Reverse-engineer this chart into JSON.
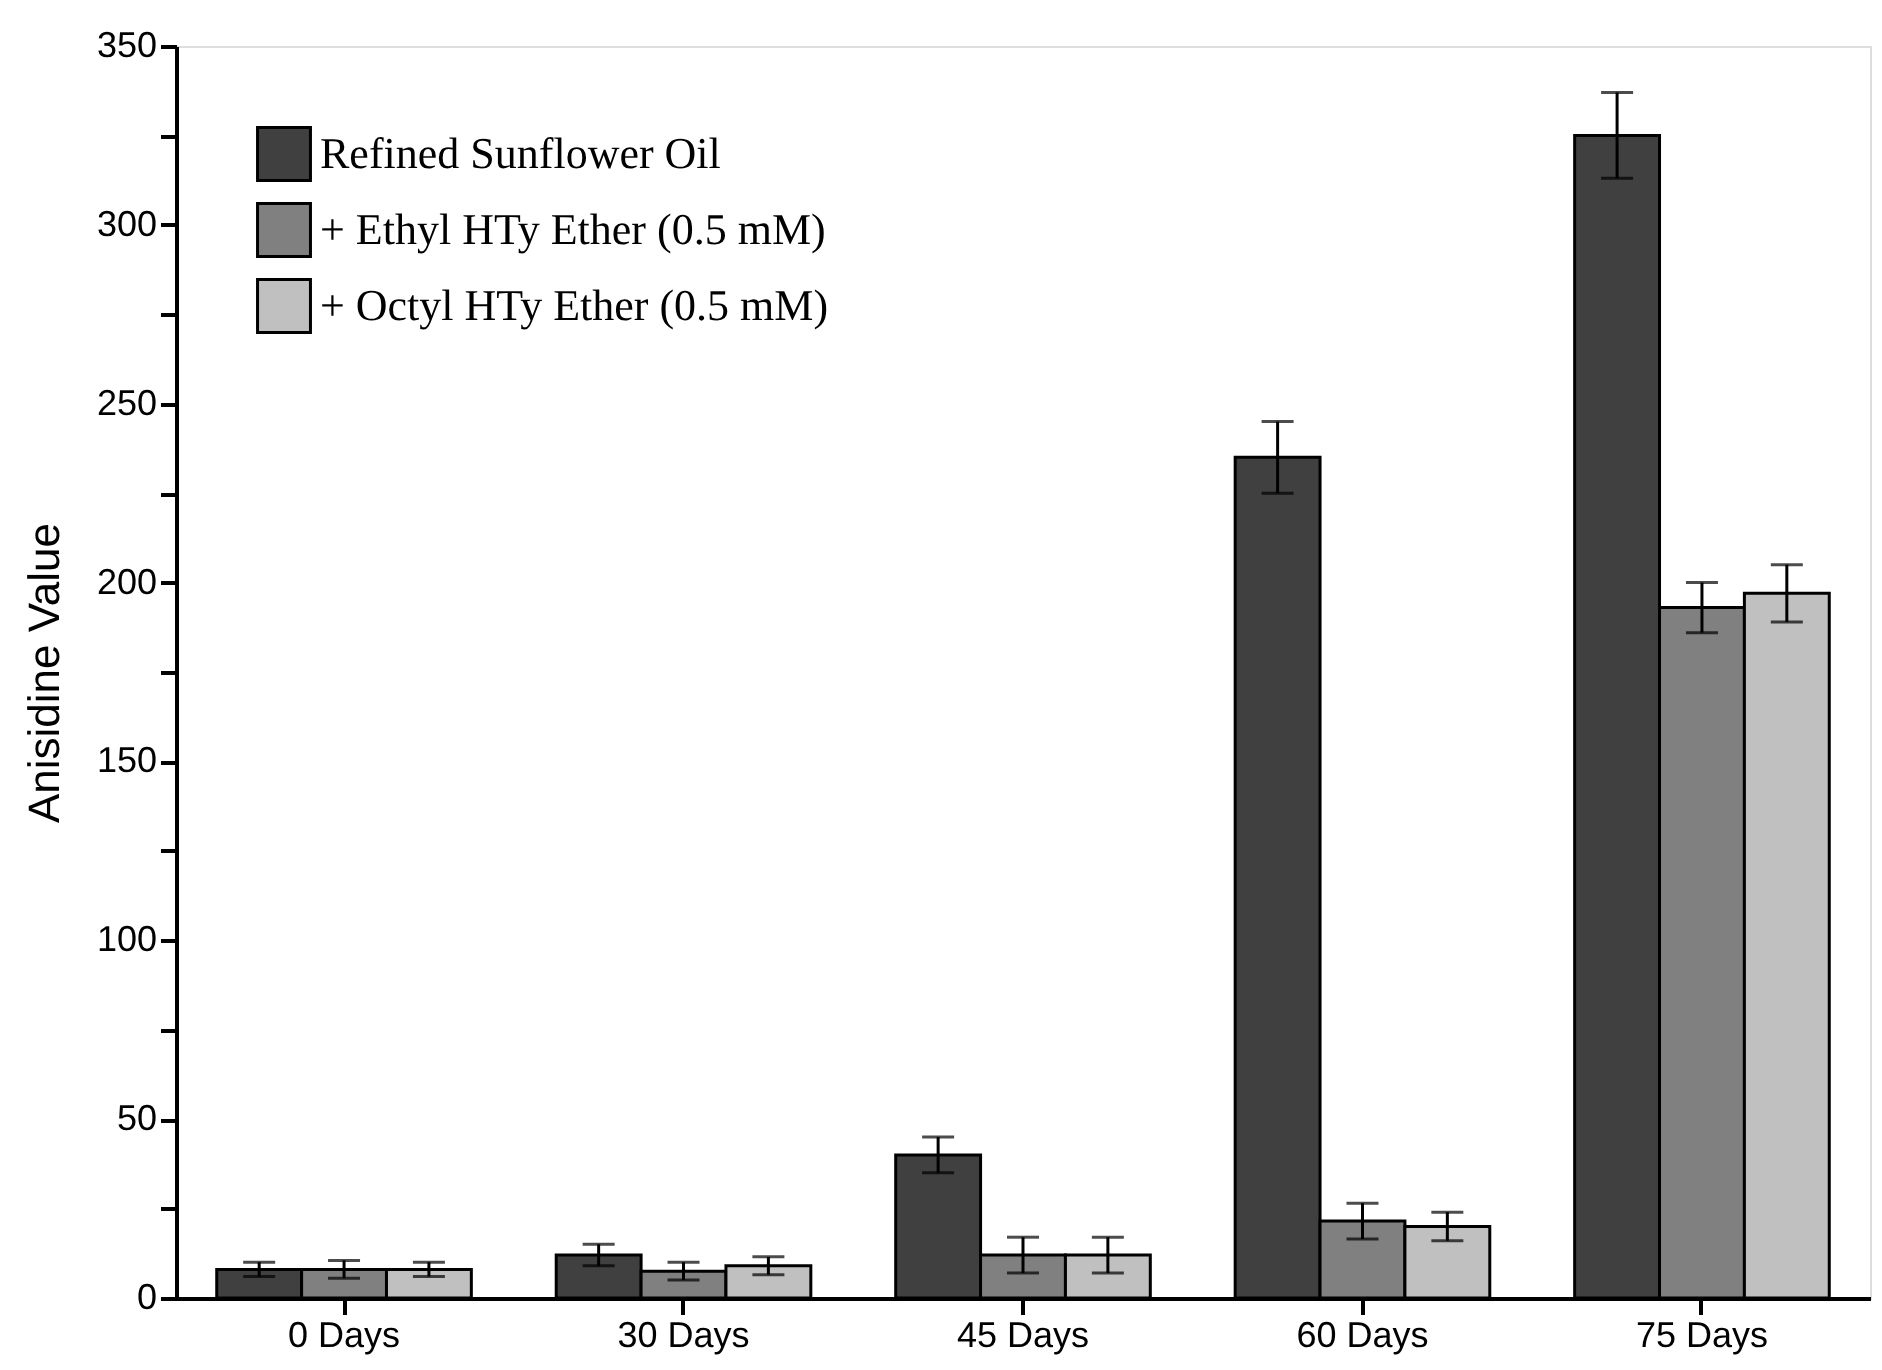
{
  "chart_data": {
    "type": "bar",
    "ylabel": "Anisidine Value",
    "categories": [
      "0  Days",
      "30 Days",
      "45 Days",
      "60 Days",
      "75 Days"
    ],
    "series": [
      {
        "name": "Refined Sunflower Oil",
        "color": "#404040",
        "values": [
          8,
          12,
          40,
          235,
          325
        ],
        "errors": [
          2,
          3,
          5,
          10,
          12
        ]
      },
      {
        "name": "+ Ethyl HTy Ether (0.5 mM)",
        "color": "#808080",
        "values": [
          8,
          7.5,
          12,
          21.5,
          193
        ],
        "errors": [
          2.5,
          2.5,
          5,
          5,
          7
        ]
      },
      {
        "name": "+ Octyl HTy Ether (0.5 mM)",
        "color": "#c0c0c0",
        "values": [
          8,
          9,
          12,
          20,
          197
        ],
        "errors": [
          2,
          2.5,
          5,
          4,
          8
        ]
      }
    ],
    "ylim": [
      0,
      350
    ],
    "yticks": [
      0,
      {
        "value": 25,
        "label": null
      },
      50,
      {
        "value": 75,
        "label": null
      },
      100,
      {
        "value": 125,
        "label": null
      },
      150,
      {
        "value": 175,
        "label": null
      },
      200,
      {
        "value": 225,
        "label": null
      },
      250,
      {
        "value": 275,
        "label": null
      },
      300,
      {
        "value": 325,
        "label": null
      },
      350
    ],
    "grid": false,
    "legend": "top left"
  }
}
